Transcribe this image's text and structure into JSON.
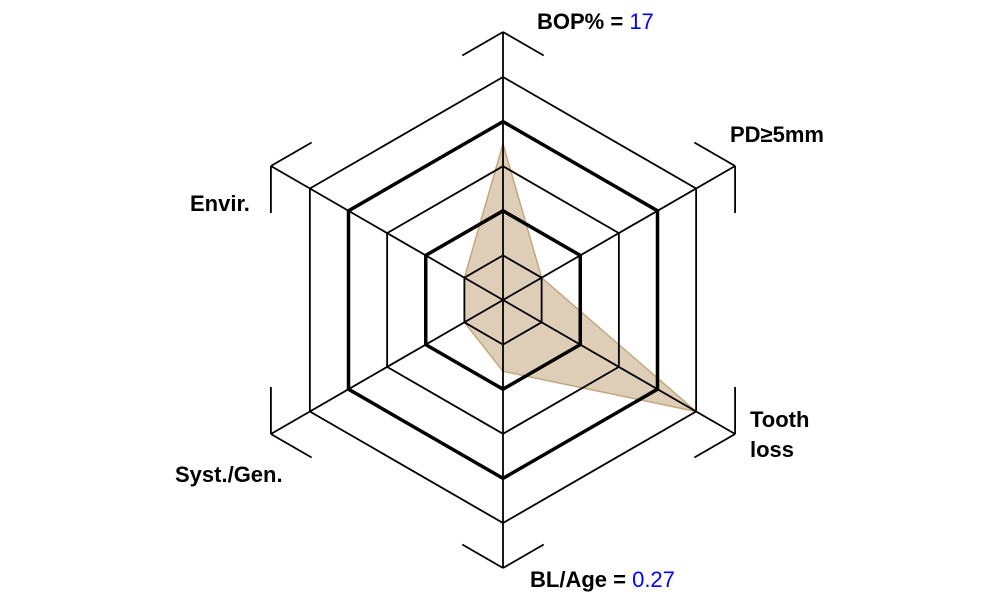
{
  "axes": [
    {
      "id": "bop",
      "label": "BOP% = ",
      "value": "17"
    },
    {
      "id": "pd",
      "label": "PD≥5mm"
    },
    {
      "id": "tooth",
      "label": "Tooth",
      "label2": "loss"
    },
    {
      "id": "blage",
      "label": "BL/Age = ",
      "value": "0.27"
    },
    {
      "id": "syst",
      "label": "Syst./Gen."
    },
    {
      "id": "envir",
      "label": "Envir."
    }
  ],
  "rings": 5,
  "bold_rings": [
    2,
    4
  ],
  "risk_profile_levels": [
    3.5,
    1.0,
    5.0,
    1.6,
    1.0,
    1.0
  ],
  "colors": {
    "fill": "#c8ad88",
    "stroke": "#c4a77f",
    "value_text": "#0000ff",
    "grid": "#000000"
  }
}
